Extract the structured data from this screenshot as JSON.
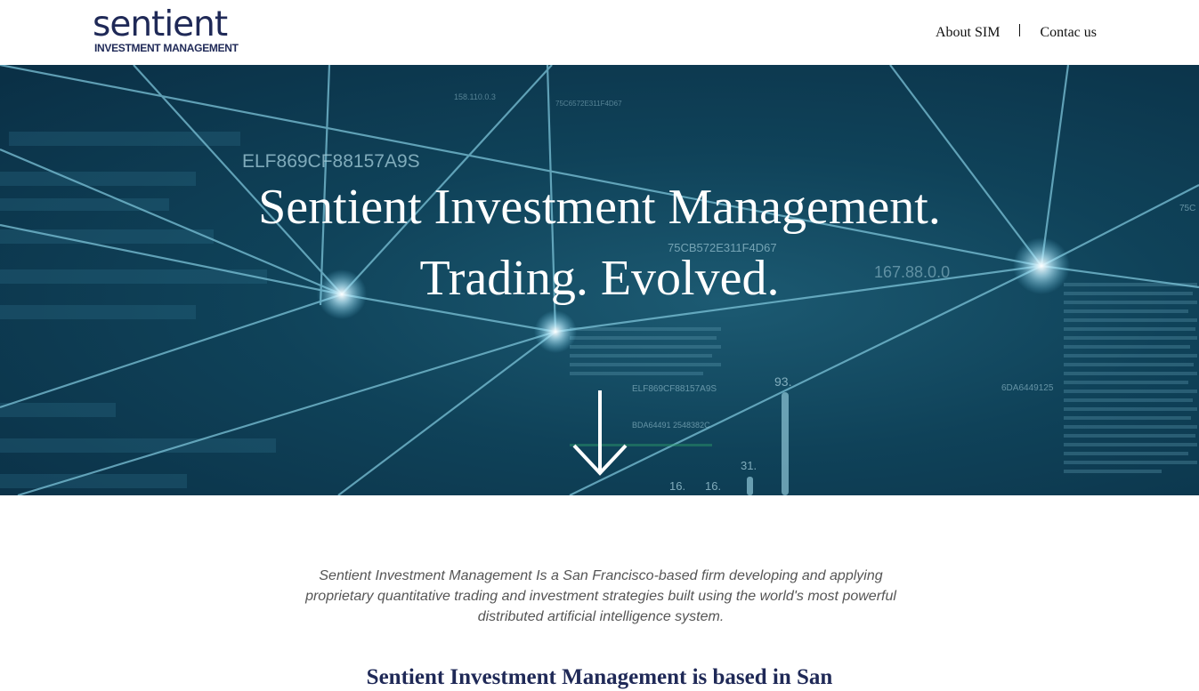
{
  "header": {
    "logo": {
      "word": "sentient",
      "subline": "INVESTMENT MANAGEMENT"
    },
    "nav": [
      {
        "label": "About SIM"
      },
      {
        "label": "Contac us"
      }
    ]
  },
  "hero": {
    "line1": "Sentient Investment Management.",
    "line2": "Trading. Evolved.",
    "background_texts": {
      "hex1": "ELF869CF88157A9S",
      "hex2": "75CB572E311F4D67",
      "num1": "167.88.0.0",
      "num2": "93.",
      "num3": "31.",
      "num4": "16.",
      "num5": "16.",
      "hex3": "6DA6449125",
      "hex4": "75C",
      "hex5": "75C6572E311F4D67",
      "hex6": "ELF869CF88157A9S",
      "hex7": "BDA64491 2548382C",
      "num6": "158.110.0.3"
    },
    "down_icon": "arrow-down-icon"
  },
  "intro": {
    "text": "Sentient Investment Management Is a San Francisco-based firm developing and applying proprietary quantitative trading and investment strategies built using the world's most powerful distributed artificial intelligence system."
  },
  "location": {
    "text": "Sentient Investment Management is based in San"
  },
  "colors": {
    "brand": "#1f2957",
    "hero_bg": "#0f4259",
    "network_line": "#6fb3c9"
  }
}
